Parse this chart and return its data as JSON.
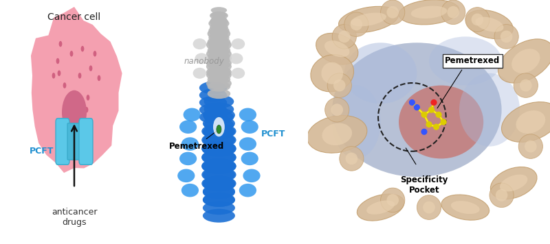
{
  "bg_color": "#ffffff",
  "panel1": {
    "title": "Cancer cell",
    "cell_color": "#f4a0b0",
    "cell_dark_color": "#e07090",
    "pcft_color": "#5bc8e8",
    "pcft_label": "PCFT",
    "pcft_label_color": "#2090d0",
    "bottom_label": "anticancer\ndrugs",
    "arrow_color": "#111111"
  },
  "panel2": {
    "nanobody_label": "nanobody",
    "nanobody_label_color": "#999999",
    "pcft_label": "PCFT",
    "pcft_label_color": "#2090d0",
    "pemetrexed_label": "Pemetrexed",
    "nanobody_color": "#c0c0c0",
    "pcft_body_color": "#2277dd"
  },
  "panel3": {
    "pemetrexed_label": "Pemetrexed",
    "specificity_label": "Specificity\nPocket",
    "helix_color": "#d4b896",
    "surface_blue": "#8899cc",
    "surface_red": "#cc6655"
  },
  "figsize": [
    8.0,
    3.56
  ],
  "dpi": 100
}
